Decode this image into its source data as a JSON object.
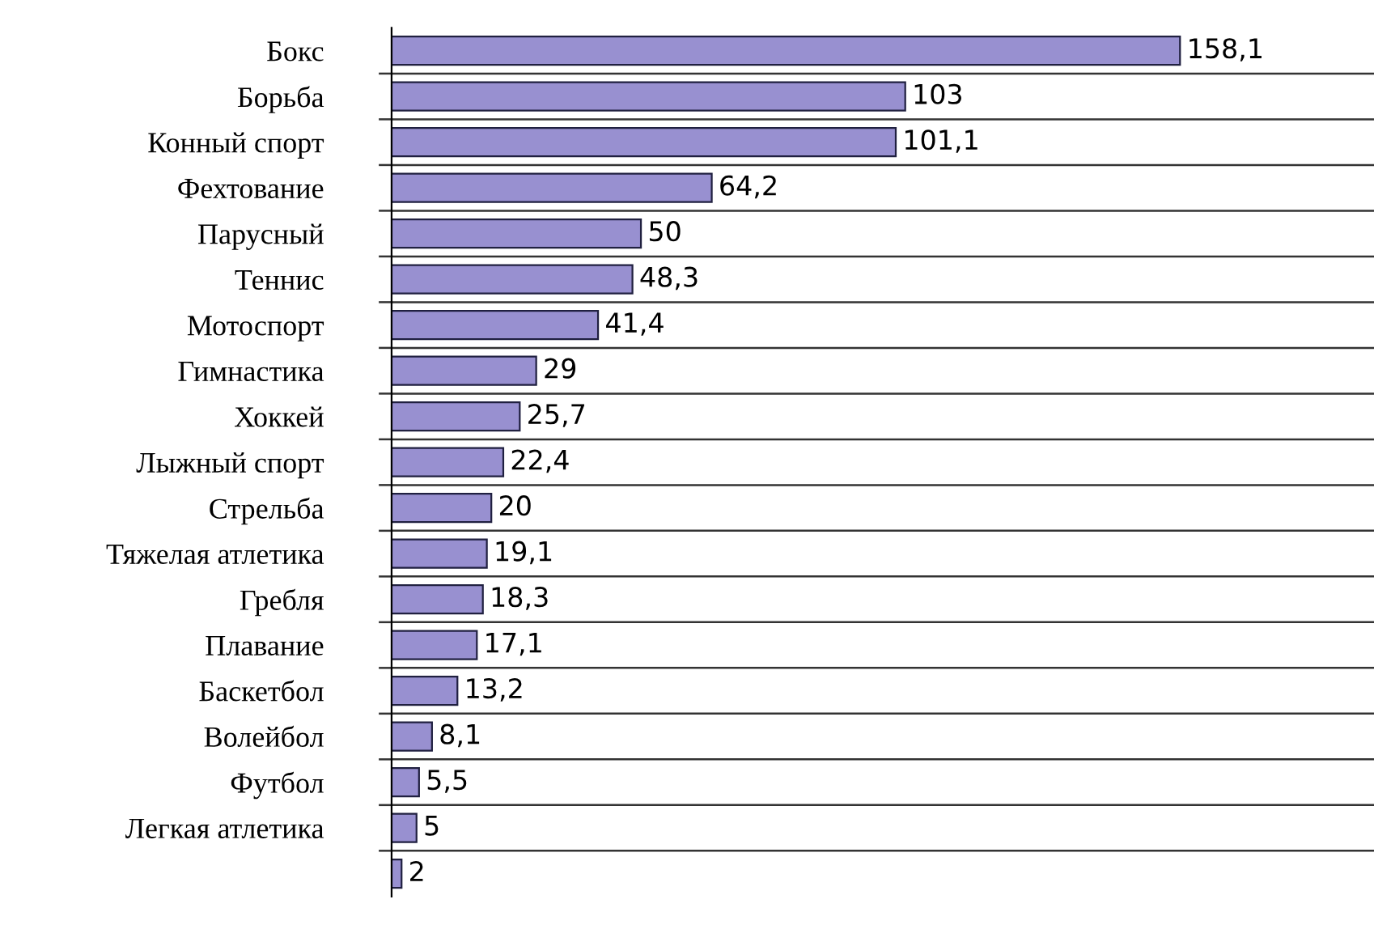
{
  "chart_data": {
    "type": "bar",
    "orientation": "horizontal",
    "categories": [
      "Бокс",
      "Борьба",
      "Конный спорт",
      "Фехтование",
      "Парусный",
      "Теннис",
      "Мотоспорт",
      "Гимнастика",
      "Хоккей",
      "Лыжный спорт",
      "Стрельба",
      "Тяжелая атлетика",
      "Гребля",
      "Плавание",
      "Баскетбол",
      "Волейбол",
      "Футбол",
      "Легкая атлетика",
      null
    ],
    "values": [
      158.1,
      103,
      101.1,
      64.2,
      50,
      48.3,
      41.4,
      29,
      25.7,
      22.4,
      20,
      19.1,
      18.3,
      17.1,
      13.2,
      8.1,
      5.5,
      5,
      2
    ],
    "color": "#9890d0",
    "xlim": [
      0,
      197
    ],
    "grid": "y",
    "value_labels": [
      "158,1",
      "103",
      "101,1",
      "64,2",
      "50",
      "48,3",
      "41,4",
      "29",
      "25,7",
      "22,4",
      "20",
      "19,1",
      "18,3",
      "17,1",
      "13,2",
      "8,1",
      "5,5",
      "5",
      "2"
    ]
  }
}
